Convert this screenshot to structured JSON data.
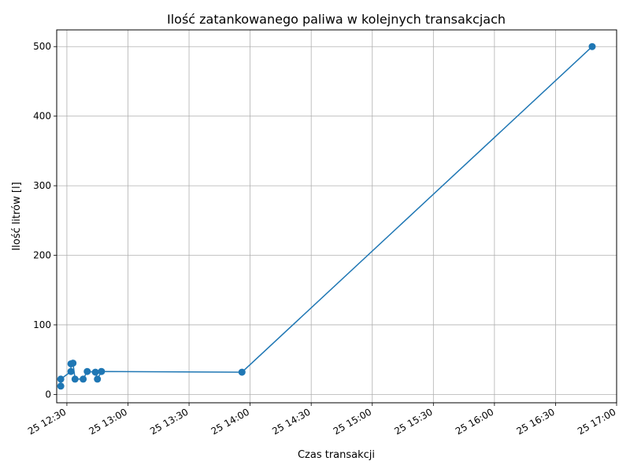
{
  "chart_data": {
    "type": "line",
    "title": "Ilość zatankowanego paliwa w kolejnych transakcjach",
    "xlabel": "Czas transakcji",
    "ylabel": "Ilość litrów [l]",
    "grid": true,
    "legend": "none",
    "x_scale": "time",
    "color": "#1f77b4",
    "x_range": [
      "25 12:25",
      "25 17:00"
    ],
    "ylim": [
      -12,
      524
    ],
    "x_ticks": [
      "25 12:30",
      "25 13:00",
      "25 13:30",
      "25 14:00",
      "25 14:30",
      "25 15:00",
      "25 15:30",
      "25 16:00",
      "25 16:30",
      "25 17:00"
    ],
    "y_ticks": [
      "0",
      "100",
      "200",
      "300",
      "400",
      "500"
    ],
    "series": [
      {
        "x": [
          "25 12:27",
          "25 12:27",
          "25 12:32",
          "25 12:32",
          "25 12:33",
          "25 12:34",
          "25 12:38",
          "25 12:40",
          "25 12:44",
          "25 12:45",
          "25 12:47",
          "25 13:56",
          "25 16:48"
        ],
        "y": [
          12,
          22,
          33,
          44,
          45,
          22,
          22,
          33,
          32,
          22,
          33,
          32,
          500
        ]
      }
    ]
  }
}
